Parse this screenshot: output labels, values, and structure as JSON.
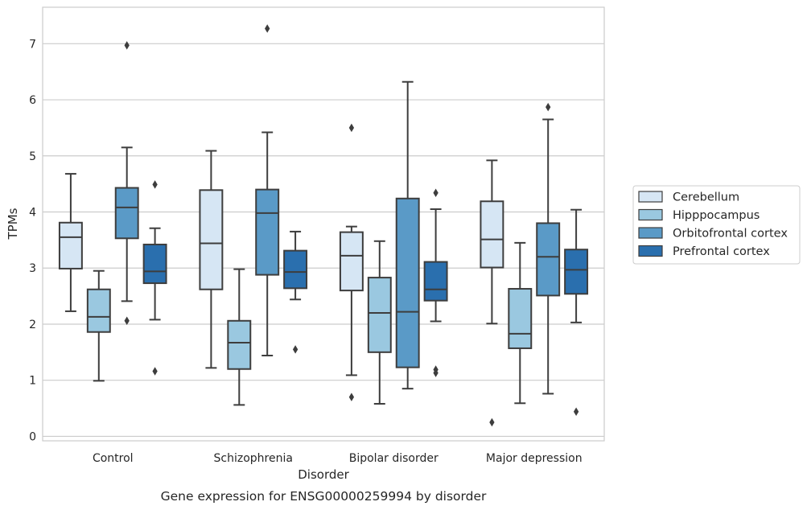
{
  "chart_data": {
    "type": "box",
    "title": "",
    "caption": "Gene expression for ENSG00000259994 by disorder",
    "xlabel": "Disorder",
    "ylabel": "TPMs",
    "ylim": [
      -0.08,
      7.65
    ],
    "yticks": [
      0,
      1,
      2,
      3,
      4,
      5,
      6,
      7
    ],
    "grid": "horizontal",
    "legend_position": "right-center",
    "categories": [
      "Control",
      "Schizophrenia",
      "Bipolar disorder",
      "Major depression"
    ],
    "series": [
      {
        "name": "Cerebellum",
        "color": "#d6e6f4",
        "boxes": [
          {
            "whisker_low": 2.23,
            "q1": 2.99,
            "median": 3.55,
            "q3": 3.81,
            "whisker_high": 4.68,
            "outliers": []
          },
          {
            "whisker_low": 1.22,
            "q1": 2.62,
            "median": 3.44,
            "q3": 4.39,
            "whisker_high": 5.09,
            "outliers": []
          },
          {
            "whisker_low": 1.09,
            "q1": 2.6,
            "median": 3.22,
            "q3": 3.64,
            "whisker_high": 3.74,
            "outliers": [
              5.5,
              0.7
            ]
          },
          {
            "whisker_low": 2.01,
            "q1": 3.01,
            "median": 3.51,
            "q3": 4.19,
            "whisker_high": 4.92,
            "outliers": [
              0.25
            ]
          }
        ]
      },
      {
        "name": "Hipppocampus",
        "color": "#9ac8e0",
        "boxes": [
          {
            "whisker_low": 0.99,
            "q1": 1.86,
            "median": 2.13,
            "q3": 2.62,
            "whisker_high": 2.95,
            "outliers": []
          },
          {
            "whisker_low": 0.56,
            "q1": 1.2,
            "median": 1.67,
            "q3": 2.06,
            "whisker_high": 2.98,
            "outliers": []
          },
          {
            "whisker_low": 0.58,
            "q1": 1.5,
            "median": 2.2,
            "q3": 2.83,
            "whisker_high": 3.48,
            "outliers": []
          },
          {
            "whisker_low": 0.59,
            "q1": 1.57,
            "median": 1.83,
            "q3": 2.63,
            "whisker_high": 3.45,
            "outliers": []
          }
        ]
      },
      {
        "name": "Orbitofrontal cortex",
        "color": "#5a9ac7",
        "boxes": [
          {
            "whisker_low": 2.41,
            "q1": 3.53,
            "median": 4.08,
            "q3": 4.43,
            "whisker_high": 5.15,
            "outliers": [
              6.97,
              2.06
            ]
          },
          {
            "whisker_low": 1.44,
            "q1": 2.88,
            "median": 3.98,
            "q3": 4.4,
            "whisker_high": 5.42,
            "outliers": [
              7.27
            ]
          },
          {
            "whisker_low": 0.85,
            "q1": 1.23,
            "median": 2.22,
            "q3": 4.24,
            "whisker_high": 6.32,
            "outliers": []
          },
          {
            "whisker_low": 0.76,
            "q1": 2.51,
            "median": 3.2,
            "q3": 3.8,
            "whisker_high": 5.65,
            "outliers": [
              5.87
            ]
          }
        ]
      },
      {
        "name": "Prefrontal cortex",
        "color": "#2a6fae",
        "boxes": [
          {
            "whisker_low": 2.08,
            "q1": 2.73,
            "median": 2.94,
            "q3": 3.42,
            "whisker_high": 3.71,
            "outliers": [
              4.49,
              1.16
            ]
          },
          {
            "whisker_low": 2.44,
            "q1": 2.64,
            "median": 2.93,
            "q3": 3.31,
            "whisker_high": 3.65,
            "outliers": [
              1.55
            ]
          },
          {
            "whisker_low": 2.05,
            "q1": 2.42,
            "median": 2.62,
            "q3": 3.11,
            "whisker_high": 4.05,
            "outliers": [
              4.34,
              1.19,
              1.13
            ]
          },
          {
            "whisker_low": 2.03,
            "q1": 2.54,
            "median": 2.97,
            "q3": 3.33,
            "whisker_high": 4.04,
            "outliers": [
              0.44
            ]
          }
        ]
      }
    ]
  }
}
